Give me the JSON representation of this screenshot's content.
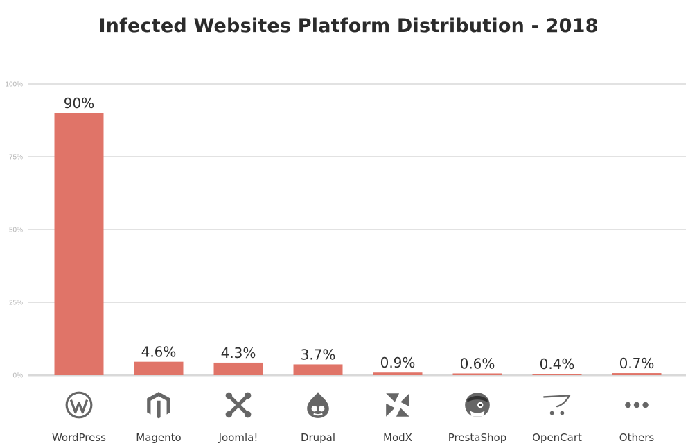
{
  "chart_data": {
    "type": "bar",
    "title": "Infected Websites Platform Distribution - 2018",
    "categories": [
      "WordPress",
      "Magento",
      "Joomla!",
      "Drupal",
      "ModX",
      "PrestaShop",
      "OpenCart",
      "Others"
    ],
    "values": [
      90,
      4.6,
      4.3,
      3.7,
      0.9,
      0.6,
      0.4,
      0.7
    ],
    "data_labels": [
      "90%",
      "4.6%",
      "4.3%",
      "3.7%",
      "0.9%",
      "0.6%",
      "0.4%",
      "0.7%"
    ],
    "icons": [
      "wordpress-icon",
      "magento-icon",
      "joomla-icon",
      "drupal-icon",
      "modx-icon",
      "prestashop-icon",
      "opencart-icon",
      "more-dots-icon"
    ],
    "yticks": [
      0,
      25,
      50,
      75,
      100
    ],
    "ytick_labels": [
      "0%",
      "25%",
      "50%",
      "75%",
      "100%"
    ],
    "ylim": [
      0,
      100
    ],
    "xlabel": "",
    "ylabel": "",
    "grid": true,
    "bar_color": "#e07468",
    "icon_color": "#666666"
  }
}
